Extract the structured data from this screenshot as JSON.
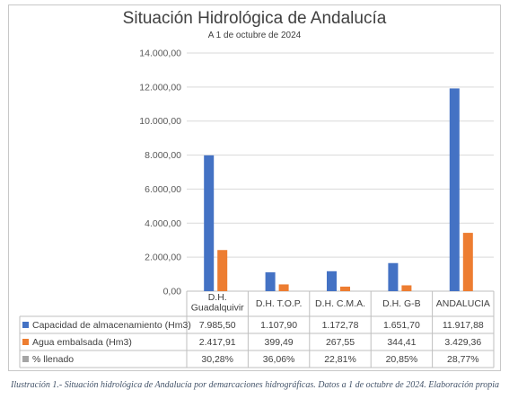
{
  "chart_data": {
    "type": "bar",
    "title": "Situación Hidrológica de Andalucía",
    "subtitle": "A 1 de octubre de 2024",
    "categories": [
      "D.H. Guadalquivir",
      "D.H. T.O.P.",
      "D.H. C.M.A.",
      "D.H. G-B",
      "ANDALUCIA"
    ],
    "category_lines": [
      [
        "D.H.",
        "Guadalquivir"
      ],
      [
        "D.H. T.O.P."
      ],
      [
        "D.H. C.M.A."
      ],
      [
        "D.H. G-B"
      ],
      [
        "ANDALUCIA"
      ]
    ],
    "series": [
      {
        "name": "Capacidad de almacenamiento (Hm3)",
        "color": "#4472c4",
        "values": [
          7985.5,
          1107.9,
          1172.78,
          1651.7,
          11917.88
        ],
        "labels": [
          "7.985,50",
          "1.107,90",
          "1.172,78",
          "1.651,70",
          "11.917,88"
        ]
      },
      {
        "name": "Agua embalsada (Hm3)",
        "color": "#ed7d31",
        "values": [
          2417.91,
          399.49,
          267.55,
          344.41,
          3429.36
        ],
        "labels": [
          "2.417,91",
          "399,49",
          "267,55",
          "344,41",
          "3.429,36"
        ]
      },
      {
        "name": "% llenado",
        "color": "#a5a5a5",
        "values": [
          30.28,
          36.06,
          22.81,
          20.85,
          28.77
        ],
        "labels": [
          "30,28%",
          "36,06%",
          "22,81%",
          "20,85%",
          "28,77%"
        ]
      }
    ],
    "ylim": [
      0,
      14000
    ],
    "yticks": [
      0,
      2000,
      4000,
      6000,
      8000,
      10000,
      12000,
      14000
    ],
    "ytick_labels": [
      "0,00",
      "2.000,00",
      "4.000,00",
      "6.000,00",
      "8.000,00",
      "10.000,00",
      "12.000,00",
      "14.000,00"
    ],
    "grid": true,
    "legend": "data-table"
  },
  "caption": "Ilustración 1.- Situación hidrológica de Andalucía por demarcaciones hidrográficas. Datos a 1 de octubre de 2024. Elaboración propia"
}
